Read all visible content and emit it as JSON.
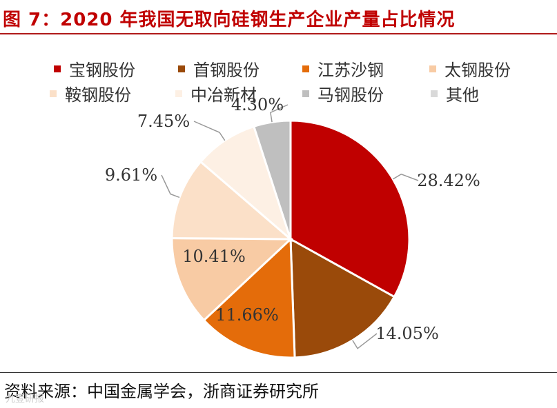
{
  "title": "图 7：2020 年我国无取向硅钢生产企业产量占比情况",
  "source": "资料来源：中国金属学会，浙商证券研究所",
  "watermark": "九壹研报",
  "colors": {
    "title": "#c00000"
  },
  "chart_data": {
    "type": "pie",
    "title": "",
    "legend_position": "top",
    "slices": [
      {
        "label": "宝钢股份",
        "value": 28.42,
        "display": "28.42%",
        "color": "#c00000"
      },
      {
        "label": "首钢股份",
        "value": 14.05,
        "display": "14.05%",
        "color": "#9a4a0a"
      },
      {
        "label": "江苏沙钢",
        "value": 11.66,
        "display": "11.66%",
        "color": "#e46c0a"
      },
      {
        "label": "太钢股份",
        "value": 10.41,
        "display": "10.41%",
        "color": "#f8cba4"
      },
      {
        "label": "鞍钢股份",
        "value": 9.61,
        "display": "9.61%",
        "color": "#fbe0c8"
      },
      {
        "label": "中冶新材",
        "value": 7.45,
        "display": "7.45%",
        "color": "#fdf0e4"
      },
      {
        "label": "马钢股份",
        "value": 4.3,
        "display": "4.30%",
        "color": "#bfbfbf"
      },
      {
        "label": "其他",
        "value": 0,
        "display": "",
        "color": "#d9d9d9"
      }
    ]
  }
}
